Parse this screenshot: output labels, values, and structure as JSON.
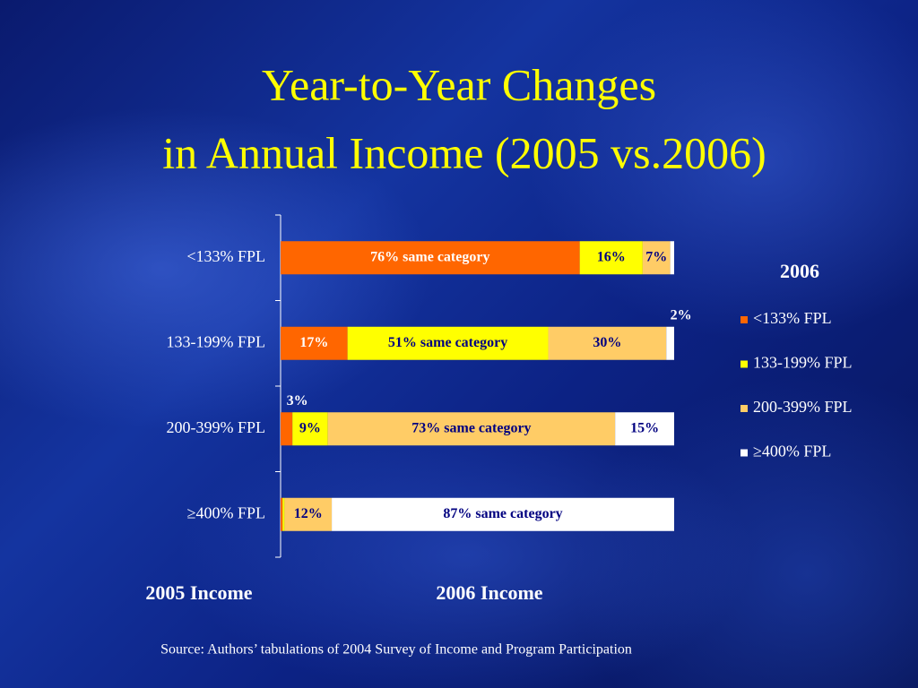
{
  "chart_data": {
    "type": "stacked-bar-horizontal",
    "title": [
      "Year-to-Year Changes",
      "in Annual Income (2005 vs.2006)"
    ],
    "categories": [
      "<133% FPL",
      "133-199% FPL",
      "200-399% FPL",
      "≥400% FPL"
    ],
    "xlim": [
      0,
      100
    ],
    "legend_title": "2006",
    "legend": "right",
    "series": [
      {
        "name": "<133% FPL",
        "color": "#ff6600",
        "values": [
          76,
          17,
          3,
          0.5
        ],
        "value_labels": [
          "76% same category",
          "17%",
          "3%",
          null
        ]
      },
      {
        "name": "133-199% FPL",
        "color": "#ffff00",
        "values": [
          16,
          51,
          9,
          0.5
        ],
        "value_labels": [
          "16%",
          "51% same category",
          "9%",
          null
        ]
      },
      {
        "name": "200-399% FPL",
        "color": "#ffcc66",
        "values": [
          7,
          30,
          73,
          12
        ],
        "value_labels": [
          "7%",
          "30%",
          "73% same category",
          "12%"
        ]
      },
      {
        "name": "≥400% FPL",
        "color": "#ffffff",
        "values": [
          1,
          2,
          15,
          87
        ],
        "value_labels": [
          null,
          "2%",
          "15%",
          "87% same category"
        ]
      }
    ],
    "row_axis_label": "2005 Income",
    "bar_axis_label": "2006 Income",
    "source": "Source:  Authors’ tabulations of 2004 Survey of Income and Program Participation"
  }
}
